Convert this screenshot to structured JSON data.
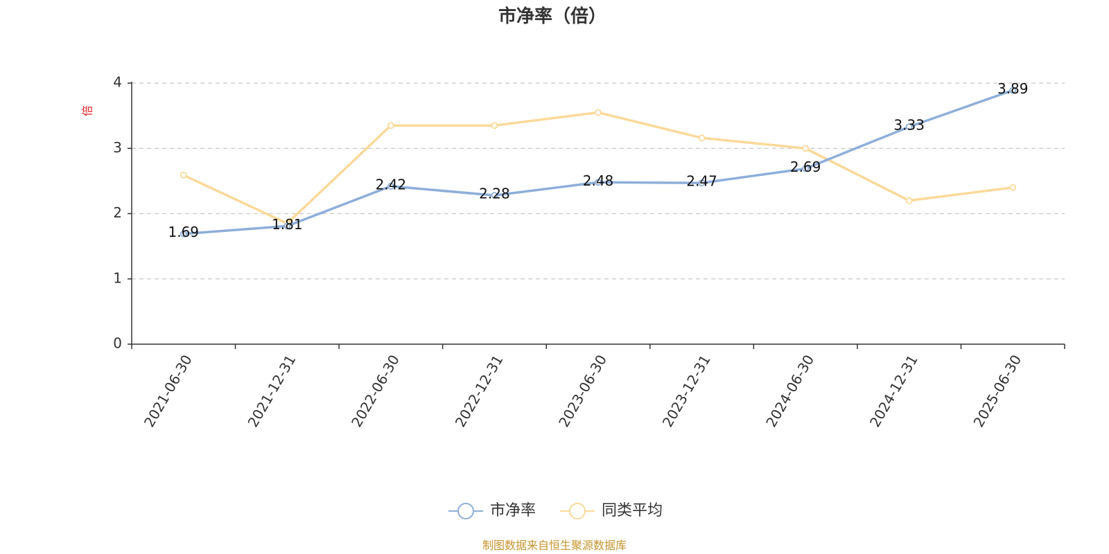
{
  "chart_data": {
    "type": "line",
    "title": "市净率（倍）",
    "ylabel": "倍",
    "xlabel": "",
    "x": [
      "2021-06-30",
      "2021-12-31",
      "2022-06-30",
      "2022-12-31",
      "2023-06-30",
      "2023-12-31",
      "2024-06-30",
      "2024-12-31",
      "2025-06-30"
    ],
    "series": [
      {
        "name": "市净率",
        "color": "#8eaed9",
        "values": [
          1.69,
          1.81,
          2.42,
          2.28,
          2.48,
          2.47,
          2.69,
          3.33,
          3.89
        ],
        "labels": [
          "1.69",
          "1.81",
          "2.42",
          "2.28",
          "2.48",
          "2.47",
          "2.69",
          "3.33",
          "3.89"
        ]
      },
      {
        "name": "同类平均",
        "color": "#fbd99a",
        "values": [
          2.59,
          1.85,
          3.35,
          3.35,
          3.55,
          3.16,
          3.0,
          2.2,
          2.4
        ]
      }
    ],
    "yticks": [
      "0",
      "1",
      "2",
      "3",
      "4"
    ],
    "ylim": [
      0,
      4
    ],
    "grid": true,
    "legend": "bottom-center"
  },
  "footer": {
    "source": "制图数据来自恒生聚源数据库"
  }
}
